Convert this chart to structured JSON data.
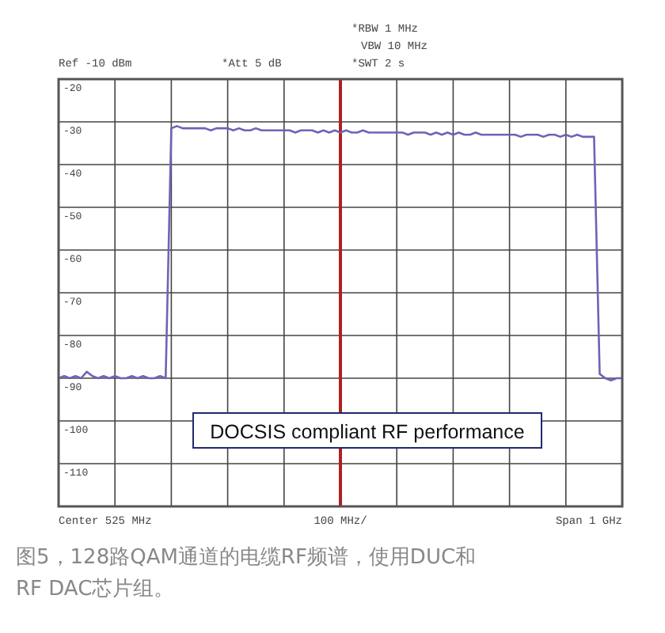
{
  "chart_data": {
    "type": "line",
    "annotations": [
      "Ref -10 dBm",
      "*Att 5 dB",
      "*RBW 1 MHz",
      "VBW 10 MHz",
      "*SWT 2 s",
      "Center 525 MHz",
      "100 MHz/",
      "Span 1 GHz",
      "DOCSIS compliant RF performance",
      "图5，128路QAM通道的电缆RF频谱，使用DUC和RF DAC芯片组。"
    ],
    "categories": [
      null,
      null,
      null,
      null,
      null,
      null,
      null,
      null,
      null,
      null,
      null,
      null,
      null,
      null,
      null,
      null,
      null,
      null,
      null,
      null,
      null,
      null,
      null,
      null,
      null,
      null,
      null,
      null,
      null,
      null,
      null,
      null,
      null,
      null,
      null,
      null,
      null,
      null,
      null,
      null,
      null,
      null,
      null,
      null,
      null,
      null,
      null,
      null,
      null,
      null,
      null,
      null,
      null,
      null,
      null,
      null,
      null,
      null,
      null,
      null,
      null,
      null,
      null,
      null,
      null,
      null,
      null,
      null,
      null,
      null,
      null,
      null,
      null,
      null,
      null,
      null,
      null,
      null,
      null,
      null,
      null,
      null,
      null,
      null,
      null,
      null,
      null,
      null,
      null,
      null,
      null,
      null,
      null,
      null,
      null,
      null,
      null,
      null,
      null,
      null,
      null
    ],
    "series": [
      {
        "color": "#6f62b8",
        "values": [
          -90,
          -89.5,
          -90,
          -89.5,
          -90,
          -88.5,
          -89.5,
          -90,
          -89.5,
          -90,
          -89.5,
          -90,
          -90,
          -89.5,
          -90,
          -89.5,
          -90,
          -90,
          -89.5,
          -90,
          -31.5,
          -31,
          -31.5,
          -31.5,
          -31.5,
          -31.5,
          -31.5,
          -32,
          -31.5,
          -31.5,
          -31.5,
          -32,
          -31.5,
          -32,
          -32,
          -31.5,
          -32,
          -32,
          -32,
          -32,
          -32,
          -32,
          -32.5,
          -32,
          -32,
          -32,
          -32.5,
          -32,
          -32.5,
          -32,
          -32.5,
          -32,
          -32.5,
          -32.5,
          -32,
          -32.5,
          -32.5,
          -32.5,
          -32.5,
          -32.5,
          -32.5,
          -32.5,
          -33,
          -32.5,
          -32.5,
          -32.5,
          -33,
          -32.5,
          -33,
          -32.5,
          -33,
          -32.5,
          -33,
          -33,
          -32.5,
          -33,
          -33,
          -33,
          -33,
          -33,
          -33,
          -33,
          -33.5,
          -33,
          -33,
          -33,
          -33.5,
          -33,
          -33,
          -33.5,
          -33,
          -33.5,
          -33,
          -33.5,
          -33.5,
          -33.5,
          -89,
          -90,
          -90.5,
          -90,
          -90
        ]
      }
    ],
    "ylim": [
      -120,
      -20
    ],
    "yticks": [
      -20,
      -30,
      -40,
      -50,
      -60,
      -70,
      -80,
      -90,
      -100,
      -110
    ],
    "tick_labels": "y",
    "grid": true,
    "marker": "none",
    "line_style": "solid",
    "ref_lines": [
      {
        "axis": "x",
        "color": "#b02020"
      }
    ]
  }
}
